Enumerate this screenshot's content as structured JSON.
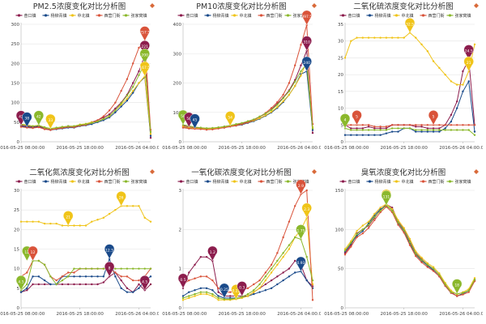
{
  "stations": [
    {
      "name": "奋口镇",
      "color": "#8c1d4d"
    },
    {
      "name": "杨柳青镇",
      "color": "#1a4a8a"
    },
    {
      "name": "中北镇",
      "color": "#f0c419"
    },
    {
      "name": "西营门街",
      "color": "#d9533a"
    },
    {
      "name": "张家窝镇",
      "color": "#8bb82c"
    }
  ],
  "x_ticks": [
    {
      "t": 0,
      "label": "2016-05-25 08:00:00"
    },
    {
      "t": 10,
      "label": "2016-05-25 18:00:00"
    },
    {
      "t": 20,
      "label": "2016-05-26 04:00:00"
    }
  ],
  "charts": [
    {
      "id": "pm25",
      "title": "PM2.5浓度变化对比分析图",
      "ymax": 300,
      "yticks": [
        0,
        50,
        100,
        150,
        200,
        250,
        300
      ],
      "series": [
        [
          42,
          40,
          38,
          40,
          35,
          32,
          35,
          36,
          40,
          38,
          42,
          45,
          50,
          55,
          62,
          70,
          85,
          100,
          120,
          150,
          180,
          221,
          10
        ],
        [
          40,
          38,
          36,
          38,
          33,
          30,
          32,
          34,
          36,
          36,
          40,
          42,
          45,
          50,
          55,
          62,
          75,
          90,
          105,
          125,
          150,
          165,
          15
        ],
        [
          44,
          42,
          40,
          42,
          36,
          33,
          35,
          38,
          38,
          40,
          44,
          46,
          50,
          52,
          58,
          65,
          80,
          95,
          110,
          130,
          150,
          167.5,
          20
        ],
        [
          38,
          36,
          35,
          37,
          32,
          30,
          33,
          35,
          38,
          37,
          41,
          43,
          48,
          55,
          65,
          80,
          100,
          130,
          160,
          200,
          240,
          257.5,
          30
        ],
        [
          45,
          43,
          40,
          42,
          37,
          34,
          36,
          38,
          40,
          40,
          43,
          45,
          48,
          52,
          58,
          66,
          80,
          98,
          118,
          140,
          170,
          200,
          25
        ]
      ],
      "pins": [
        {
          "s": 0,
          "t": 0,
          "v": 42,
          "label": "42"
        },
        {
          "s": 1,
          "t": 1,
          "v": 38,
          "label": "38"
        },
        {
          "s": 4,
          "t": 3,
          "v": 42,
          "label": "42"
        },
        {
          "s": 2,
          "t": 5,
          "v": 33,
          "label": "33"
        },
        {
          "s": 3,
          "t": 21,
          "v": 257.5,
          "label": "257.5"
        },
        {
          "s": 0,
          "t": 21,
          "v": 221,
          "label": "221"
        },
        {
          "s": 4,
          "t": 21,
          "v": 200,
          "label": "200"
        },
        {
          "s": 2,
          "t": 21,
          "v": 167.5,
          "label": "167.5"
        }
      ]
    },
    {
      "id": "pm10",
      "title": "PM10浓度变化对比分析图",
      "ymax": 400,
      "yticks": [
        0,
        100,
        200,
        300,
        400
      ],
      "series": [
        [
          55,
          50,
          48,
          47,
          45,
          46,
          48,
          52,
          55,
          58,
          62,
          68,
          75,
          85,
          95,
          110,
          130,
          150,
          175,
          210,
          260,
          310,
          30
        ],
        [
          50,
          47,
          45,
          44,
          42,
          43,
          46,
          48,
          52,
          55,
          58,
          64,
          70,
          78,
          88,
          100,
          115,
          135,
          160,
          190,
          230,
          240,
          40
        ],
        [
          52,
          48,
          46,
          45,
          43,
          45,
          47,
          50,
          54,
          56,
          60,
          66,
          72,
          80,
          90,
          102,
          118,
          138,
          160,
          190,
          225,
          275,
          50
        ],
        [
          48,
          45,
          44,
          43,
          41,
          42,
          45,
          48,
          52,
          55,
          60,
          66,
          74,
          85,
          98,
          115,
          135,
          160,
          200,
          260,
          330,
          397.5,
          60
        ],
        [
          58,
          54,
          50,
          48,
          46,
          47,
          49,
          52,
          56,
          60,
          64,
          70,
          76,
          86,
          96,
          108,
          126,
          148,
          172,
          205,
          240,
          265,
          45
        ]
      ],
      "pins": [
        {
          "s": 4,
          "t": 0,
          "v": 58,
          "label": "58"
        },
        {
          "s": 0,
          "t": 1,
          "v": 50,
          "label": "50"
        },
        {
          "s": 1,
          "t": 2,
          "v": 45,
          "label": "45"
        },
        {
          "s": 2,
          "t": 8,
          "v": 54,
          "label": "54"
        },
        {
          "s": 3,
          "t": 21,
          "v": 397.5,
          "label": "397.5"
        },
        {
          "s": 0,
          "t": 21,
          "v": 310,
          "label": "310"
        },
        {
          "s": 1,
          "t": 21,
          "v": 240,
          "label": "240"
        }
      ]
    },
    {
      "id": "so2",
      "title": "二氧化硫浓度变化对比分析图",
      "ymax": 35,
      "yticks": [
        0,
        5,
        10,
        15,
        20,
        25,
        30,
        35
      ],
      "series": [
        [
          5,
          4,
          4,
          4,
          4.5,
          4,
          4,
          4,
          5,
          5,
          5,
          5,
          4.5,
          4.5,
          4,
          4,
          4,
          5,
          8,
          12,
          21,
          24.5,
          5
        ],
        [
          2,
          2,
          2,
          2,
          2,
          2,
          2,
          2.5,
          3,
          3,
          4,
          4,
          3,
          3,
          3,
          3,
          3,
          4,
          6,
          10,
          15,
          18,
          3
        ],
        [
          25,
          30,
          31,
          31,
          31,
          31,
          31,
          31,
          31,
          31,
          31,
          32.5,
          31,
          29,
          27,
          24,
          22,
          20,
          18,
          17,
          17,
          21,
          29
        ],
        [
          5,
          5,
          5,
          5,
          5,
          4.5,
          4.5,
          4.5,
          5,
          5,
          5,
          5,
          5,
          5,
          5,
          5,
          5,
          5,
          5,
          5,
          5,
          5,
          5
        ],
        [
          4,
          3.5,
          3.5,
          3.5,
          3.5,
          3.5,
          3.5,
          3.5,
          4,
          4,
          4,
          4,
          3.5,
          3.5,
          3.5,
          3.5,
          3.5,
          3.5,
          3.5,
          3.5,
          3.5,
          3.5,
          2
        ]
      ],
      "pins": [
        {
          "s": 4,
          "t": 0,
          "v": 4,
          "label": "4"
        },
        {
          "s": 3,
          "t": 2,
          "v": 5,
          "label": "5"
        },
        {
          "s": 2,
          "t": 11,
          "v": 32.5,
          "label": "32.5"
        },
        {
          "s": 3,
          "t": 15,
          "v": 5,
          "label": "5"
        },
        {
          "s": 0,
          "t": 21,
          "v": 24.5,
          "label": "24.5"
        },
        {
          "s": 2,
          "t": 21,
          "v": 21,
          "label": "21"
        }
      ]
    },
    {
      "id": "no2",
      "title": "二氧化氮浓度变化对比分析图",
      "ymax": 30,
      "yticks": [
        0,
        5,
        10,
        15,
        20,
        25,
        30
      ],
      "series": [
        [
          4,
          4.5,
          6,
          6,
          6,
          6,
          6,
          6,
          6,
          6,
          6,
          6,
          6,
          6,
          6.5,
          8,
          9,
          7,
          5,
          4,
          6,
          4.5,
          6
        ],
        [
          4,
          5,
          8,
          8,
          7,
          6,
          6,
          8,
          8,
          8,
          8,
          8,
          8,
          8,
          8,
          12.5,
          8,
          5,
          4,
          4,
          5,
          7,
          8
        ],
        [
          22,
          22,
          22,
          22,
          21.5,
          21.5,
          21.5,
          21,
          21,
          21,
          21,
          21,
          22,
          22.5,
          23,
          24,
          25,
          26,
          26,
          26,
          26,
          23,
          22
        ],
        [
          8,
          9,
          12,
          12,
          11,
          8,
          7,
          8,
          9,
          9,
          10,
          10,
          10,
          10,
          10,
          10,
          9,
          8,
          8,
          7,
          7,
          8,
          10
        ],
        [
          4.5,
          6,
          12,
          12,
          11,
          8,
          6,
          7,
          8,
          10,
          10,
          10,
          10,
          10,
          10,
          10,
          10,
          10,
          10,
          10,
          10,
          10,
          10
        ]
      ],
      "pins": [
        {
          "s": 4,
          "t": 0,
          "v": 4.5,
          "label": "4.5"
        },
        {
          "s": 4,
          "t": 1,
          "v": 12,
          "label": "12"
        },
        {
          "s": 3,
          "t": 2,
          "v": 12,
          "label": "12"
        },
        {
          "s": 2,
          "t": 8,
          "v": 21,
          "label": "21"
        },
        {
          "s": 1,
          "t": 15,
          "v": 12.5,
          "label": "12.5"
        },
        {
          "s": 0,
          "t": 15,
          "v": 8,
          "label": "8"
        },
        {
          "s": 2,
          "t": 17,
          "v": 26,
          "label": "26"
        },
        {
          "s": 0,
          "t": 21,
          "v": 4.5,
          "label": "4.5"
        }
      ]
    },
    {
      "id": "co",
      "title": "一氧化碳浓度变化对比分析图",
      "ymax": 3,
      "yticks": [
        0,
        1,
        2,
        3
      ],
      "series": [
        [
          0.5,
          0.9,
          1.1,
          1.3,
          1.3,
          1.2,
          0.4,
          0.3,
          0.3,
          0.3,
          0.3,
          0.3,
          0.4,
          0.5,
          0.6,
          0.7,
          0.8,
          0.9,
          1,
          1.2,
          1.1,
          0.7,
          0.55
        ],
        [
          0.3,
          0.4,
          0.45,
          0.5,
          0.5,
          0.45,
          0.3,
          0.25,
          0.25,
          0.25,
          0.26,
          0.3,
          0.35,
          0.4,
          0.45,
          0.5,
          0.6,
          0.7,
          0.8,
          0.9,
          0.93,
          0.7,
          0.5
        ],
        [
          0.2,
          0.25,
          0.3,
          0.35,
          0.35,
          0.3,
          0.2,
          0.2,
          0.2,
          0.22,
          0.25,
          0.3,
          0.4,
          0.5,
          0.7,
          0.9,
          1.1,
          1.3,
          1.5,
          1.8,
          2.0,
          2.3,
          0.6
        ],
        [
          0.6,
          0.7,
          0.75,
          0.8,
          0.8,
          0.7,
          0.5,
          0.4,
          0.4,
          0.42,
          0.45,
          0.5,
          0.6,
          0.7,
          0.9,
          1.1,
          1.4,
          1.8,
          2.2,
          2.6,
          2.9,
          3.0,
          0.2
        ],
        [
          0.25,
          0.3,
          0.35,
          0.4,
          0.4,
          0.35,
          0.25,
          0.22,
          0.22,
          0.24,
          0.28,
          0.35,
          0.45,
          0.6,
          0.8,
          1,
          1.2,
          1.4,
          1.6,
          1.8,
          1.75,
          1.3,
          0.7
        ]
      ],
      "pins": [
        {
          "s": 0,
          "t": 0,
          "v": 0.5,
          "label": "0.5"
        },
        {
          "s": 0,
          "t": 5,
          "v": 1.2,
          "label": "1.2"
        },
        {
          "s": 1,
          "t": 7,
          "v": 0.25,
          "label": "0.25"
        },
        {
          "s": 2,
          "t": 9,
          "v": 0.22,
          "label": "0.22"
        },
        {
          "s": 0,
          "t": 10,
          "v": 0.3,
          "label": "0.3"
        },
        {
          "s": 3,
          "t": 20,
          "v": 2.9,
          "label": "2.9"
        },
        {
          "s": 2,
          "t": 21,
          "v": 2.3,
          "label": "2.3"
        },
        {
          "s": 4,
          "t": 20,
          "v": 1.75,
          "label": "1.75"
        },
        {
          "s": 1,
          "t": 20,
          "v": 0.93,
          "label": "0.93"
        }
      ]
    },
    {
      "id": "o3",
      "title": "臭氧浓度变化对比分析图",
      "ymax": 150,
      "yticks": [
        0,
        50,
        100,
        150
      ],
      "series": [
        [
          70,
          80,
          95,
          100,
          105,
          115,
          125,
          132,
          128,
          110,
          100,
          85,
          70,
          62,
          55,
          50,
          42,
          30,
          20,
          15,
          18,
          22,
          35
        ],
        [
          72,
          82,
          92,
          98,
          108,
          118,
          126,
          130,
          125,
          108,
          98,
          82,
          68,
          60,
          54,
          48,
          40,
          28,
          19,
          15,
          18,
          22,
          36
        ],
        [
          75,
          85,
          98,
          105,
          110,
          120,
          128,
          132.5,
          126,
          112,
          102,
          88,
          72,
          64,
          57,
          52,
          44,
          32,
          22,
          17,
          20,
          24,
          38
        ],
        [
          68,
          78,
          90,
          95,
          102,
          112,
          122,
          129,
          122,
          106,
          96,
          80,
          66,
          58,
          52,
          47,
          40,
          28,
          19,
          15,
          17,
          20,
          34
        ],
        [
          73,
          83,
          94,
          100,
          106,
          116,
          124,
          131,
          124,
          109,
          99,
          84,
          69,
          61,
          55,
          50,
          42,
          30,
          20,
          18,
          19,
          22,
          36
        ]
      ],
      "pins": [
        {
          "s": 2,
          "t": 7,
          "v": 132.5,
          "label": "132.5"
        },
        {
          "s": 4,
          "t": 7,
          "v": 131,
          "label": "131"
        },
        {
          "s": 4,
          "t": 19,
          "v": 18,
          "label": "18"
        }
      ]
    }
  ]
}
